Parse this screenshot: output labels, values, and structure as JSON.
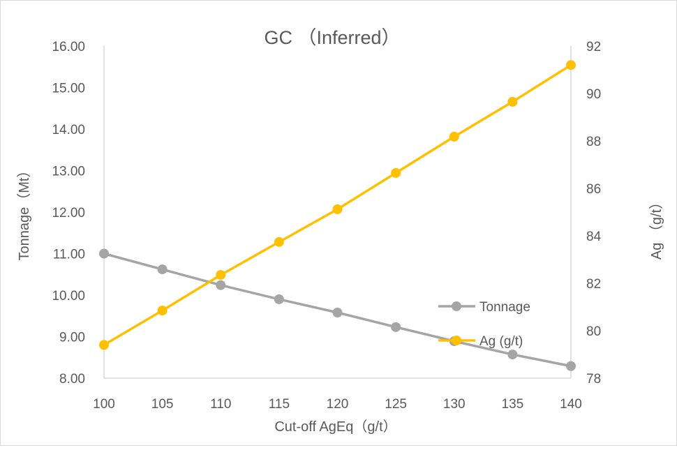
{
  "chart_data": {
    "type": "line",
    "title": "GC （Inferred）",
    "xlabel": "Cut-off  AgEq（g/t）",
    "ylabel": "Tonnage（Mt）",
    "y2label": "Ag （g/t）",
    "x": [
      100,
      105,
      110,
      115,
      120,
      125,
      130,
      135,
      140
    ],
    "xlim": [
      100,
      140
    ],
    "ylim": [
      8,
      16
    ],
    "y2lim": [
      78,
      92
    ],
    "yticks": [
      "8.00",
      "9.00",
      "10.00",
      "11.00",
      "12.00",
      "13.00",
      "14.00",
      "15.00",
      "16.00"
    ],
    "y2ticks": [
      "78",
      "80",
      "82",
      "84",
      "86",
      "88",
      "90",
      "92"
    ],
    "grid": false,
    "legend_position": "bottom-right-inside",
    "series": [
      {
        "name": "Tonnage",
        "axis": "left",
        "color": "#a5a5a5",
        "values": [
          11.0,
          10.62,
          10.24,
          9.9,
          9.58,
          9.23,
          8.89,
          8.57,
          8.29
        ]
      },
      {
        "name": "Ag (g/t)",
        "axis": "right",
        "color": "#ffc000",
        "values": [
          79.4,
          80.85,
          82.35,
          83.74,
          85.12,
          86.65,
          88.18,
          89.65,
          91.2
        ]
      }
    ]
  }
}
